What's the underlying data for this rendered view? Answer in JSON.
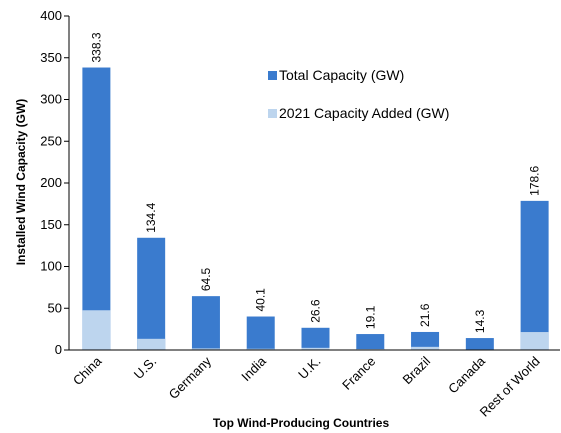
{
  "chart_data": {
    "type": "bar",
    "stacked": true,
    "title": "",
    "xlabel": "Top Wind-Producing Countries",
    "ylabel": "Installed Wind Capacity (GW)",
    "ylim": [
      0,
      400
    ],
    "yticks": [
      0,
      50,
      100,
      150,
      200,
      250,
      300,
      350,
      400
    ],
    "grid": false,
    "legend_position": "top-right",
    "categories": [
      "China",
      "U.S.",
      "Germany",
      "India",
      "U.K.",
      "France",
      "Brazil",
      "Canada",
      "Rest of World"
    ],
    "series": [
      {
        "name": "Total Capacity (GW)",
        "color": "#3A7BCE",
        "values": [
          338.3,
          134.4,
          64.5,
          40.1,
          26.6,
          19.1,
          21.6,
          14.3,
          178.6
        ],
        "labels": [
          "338.3",
          "134.4",
          "64.5",
          "40.1",
          "26.6",
          "19.1",
          "21.6",
          "14.3",
          "178.6"
        ]
      },
      {
        "name": "2021 Capacity Added (GW)",
        "color": "#BDD5EE",
        "values": [
          47.6,
          13.4,
          1.9,
          1.5,
          2.6,
          1.2,
          3.8,
          0.7,
          21.5
        ]
      }
    ]
  }
}
